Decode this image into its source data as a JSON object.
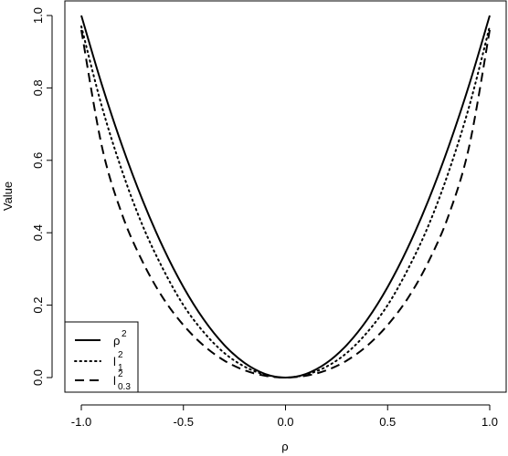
{
  "chart_data": {
    "type": "line",
    "title": "",
    "xlabel": "ρ",
    "ylabel": "Value",
    "xlim": [
      -1.0,
      1.0
    ],
    "ylim": [
      0.0,
      1.0
    ],
    "x_ticks": [
      -1.0,
      -0.5,
      0.0,
      0.5,
      1.0
    ],
    "x_tick_labels": [
      "-1.0",
      "-0.5",
      "0.0",
      "0.5",
      "1.0"
    ],
    "y_ticks": [
      0.0,
      0.2,
      0.4,
      0.6,
      0.8,
      1.0
    ],
    "y_tick_labels": [
      "0.0",
      "0.2",
      "0.4",
      "0.6",
      "0.8",
      "1.0"
    ],
    "grid": false,
    "legend_position": "bottom-left",
    "x": [
      -1.0,
      -0.9,
      -0.8,
      -0.7,
      -0.6,
      -0.5,
      -0.4,
      -0.3,
      -0.2,
      -0.1,
      0.0,
      0.1,
      0.2,
      0.3,
      0.4,
      0.5,
      0.6,
      0.7,
      0.8,
      0.9,
      1.0
    ],
    "series": [
      {
        "name_main": "ρ",
        "name_sup": "2",
        "name_sub": "",
        "dash": "solid",
        "values": [
          1.0,
          0.81,
          0.64,
          0.49,
          0.36,
          0.25,
          0.16,
          0.09,
          0.04,
          0.01,
          0.0,
          0.01,
          0.04,
          0.09,
          0.16,
          0.25,
          0.36,
          0.49,
          0.64,
          0.81,
          1.0
        ]
      },
      {
        "name_main": "l",
        "name_sup": "2",
        "name_sub": "1",
        "dash": "dotted",
        "values": [
          0.97,
          0.75,
          0.57,
          0.42,
          0.3,
          0.2,
          0.125,
          0.068,
          0.03,
          0.008,
          0.0,
          0.008,
          0.03,
          0.068,
          0.125,
          0.2,
          0.3,
          0.42,
          0.57,
          0.75,
          0.97
        ]
      },
      {
        "name_main": "l",
        "name_sup": "2",
        "name_sub": "0.3",
        "dash": "dashed",
        "values": [
          0.96,
          0.64,
          0.45,
          0.32,
          0.22,
          0.145,
          0.088,
          0.047,
          0.02,
          0.005,
          0.0,
          0.005,
          0.02,
          0.047,
          0.088,
          0.145,
          0.22,
          0.32,
          0.45,
          0.64,
          0.96
        ]
      }
    ]
  }
}
